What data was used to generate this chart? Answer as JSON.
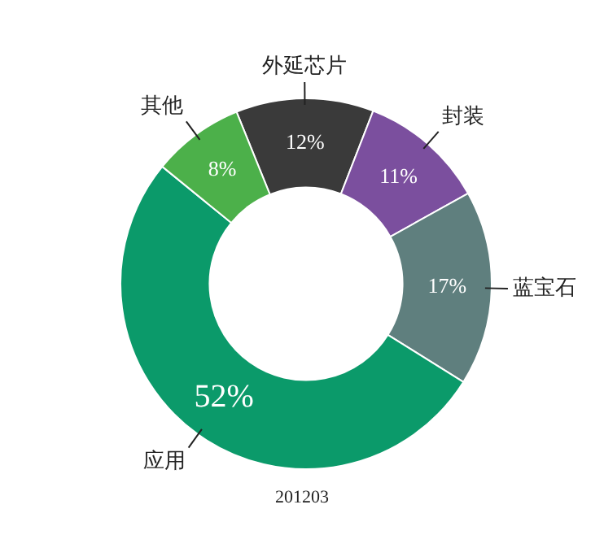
{
  "chart_data": {
    "type": "donut",
    "categories": [
      "外延芯片",
      "封装",
      "蓝宝石",
      "应用",
      "其他"
    ],
    "values": [
      12,
      11,
      17,
      52,
      8
    ],
    "colors": [
      "#3a3a3a",
      "#7b4f9e",
      "#5f7f7e",
      "#0b9a6a",
      "#4cb04a"
    ],
    "value_labels": [
      "12%",
      "11%",
      "17%",
      "52%",
      "8%"
    ],
    "legend": false,
    "annotations": [
      "201203"
    ]
  }
}
